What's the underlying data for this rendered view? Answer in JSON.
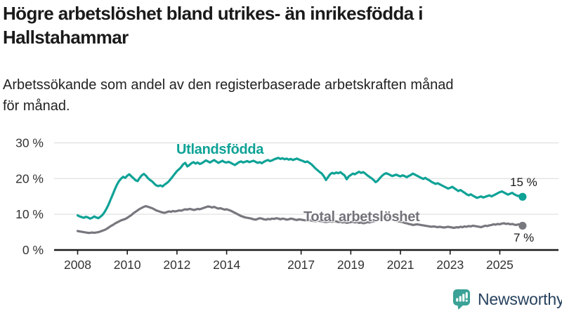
{
  "header": {
    "title_line1": "Högre arbetslöshet bland utrikes- än inrikesfödda i",
    "title_line2": "Hallstahammar",
    "subtitle_line1": "Arbetssökande som andel av den registerbaserade arbetskraften månad",
    "subtitle_line2": "för månad."
  },
  "branding": {
    "name": "Newsworthy"
  },
  "colors": {
    "series_foreign_born": "#0ea296",
    "series_total": "#77777e",
    "grid": "#d9d9d9",
    "axis": "#1a1a1a",
    "tick_text": "#333333",
    "logo_icon": "#3aa296",
    "logo_text": "#27425e"
  },
  "chart_data": {
    "type": "line",
    "title": "Högre arbetslöshet bland utrikes- än inrikesfödda i Hallstahammar",
    "subtitle": "Arbetssökande som andel av den registerbaserade arbetskraften månad för månad.",
    "xlabel": "",
    "ylabel": "",
    "x_unit": "month",
    "x_start_year": 2008,
    "x_end_year": 2025,
    "ylim": [
      0,
      30
    ],
    "grid": "horizontal",
    "legend_position": "inline-labels",
    "ytick_values": [
      0,
      10,
      20,
      30
    ],
    "ytick_labels": [
      "0 %",
      "10 %",
      "20 %",
      "30 %"
    ],
    "xtick_years": [
      2008,
      2010,
      2012,
      2014,
      2017,
      2019,
      2021,
      2023,
      2025
    ],
    "xtick_labels": [
      "2008",
      "2010",
      "2012",
      "2014",
      "2017",
      "2019",
      "2021",
      "2023",
      "2025"
    ],
    "series": [
      {
        "name": "Utlandsfödda",
        "color": "#0ea296",
        "end_label": "15 %",
        "end_value": 15,
        "values": [
          9.7,
          9.4,
          9.2,
          9.0,
          9.3,
          9.1,
          8.8,
          9.0,
          9.4,
          9.1,
          8.9,
          9.3,
          9.8,
          10.6,
          11.6,
          12.8,
          14.2,
          15.6,
          17.0,
          18.3,
          19.3,
          20.0,
          20.5,
          20.2,
          20.8,
          21.2,
          20.6,
          20.1,
          19.5,
          19.3,
          20.2,
          20.9,
          21.3,
          20.8,
          20.1,
          19.6,
          19.2,
          18.6,
          18.1,
          17.9,
          18.1,
          17.8,
          18.3,
          18.7,
          19.2,
          19.9,
          20.6,
          21.4,
          22.1,
          22.6,
          23.2,
          24.0,
          24.4,
          23.4,
          23.8,
          24.3,
          24.6,
          24.2,
          24.5,
          24.1,
          24.3,
          24.7,
          25.1,
          24.8,
          24.5,
          24.9,
          25.2,
          24.8,
          24.4,
          24.7,
          25.0,
          24.6,
          24.5,
          24.7,
          24.4,
          24.1,
          23.8,
          24.2,
          24.6,
          24.8,
          24.5,
          24.7,
          24.9,
          24.6,
          24.8,
          25.0,
          24.7,
          24.4,
          24.6,
          24.3,
          24.7,
          25.0,
          25.2,
          24.9,
          25.1,
          25.4,
          25.6,
          25.8,
          25.5,
          25.7,
          25.4,
          25.6,
          25.3,
          25.5,
          25.2,
          25.4,
          25.6,
          25.3,
          25.1,
          24.9,
          24.6,
          24.8,
          24.4,
          24.0,
          23.4,
          22.8,
          22.3,
          21.8,
          21.4,
          20.6,
          19.6,
          20.4,
          21.2,
          21.6,
          21.4,
          21.7,
          21.5,
          21.8,
          21.3,
          20.9,
          19.8,
          20.6,
          21.0,
          21.4,
          21.2,
          21.6,
          21.9,
          21.6,
          21.8,
          21.4,
          20.9,
          20.5,
          20.1,
          19.6,
          19.0,
          19.4,
          20.1,
          20.7,
          21.2,
          21.5,
          21.3,
          21.0,
          20.7,
          20.9,
          21.1,
          20.8,
          20.6,
          20.9,
          20.7,
          20.4,
          20.7,
          21.0,
          21.4,
          21.1,
          20.8,
          20.5,
          20.2,
          19.9,
          20.2,
          19.8,
          19.5,
          19.1,
          18.8,
          18.5,
          18.7,
          18.4,
          18.1,
          17.8,
          17.5,
          17.2,
          17.4,
          17.7,
          17.3,
          16.9,
          16.5,
          16.8,
          16.4,
          16.0,
          15.6,
          15.3,
          15.6,
          15.2,
          14.9,
          14.6,
          14.8,
          15.0,
          14.7,
          14.9,
          15.1,
          15.3,
          15.0,
          15.3,
          15.6,
          15.9,
          16.2,
          16.4,
          16.1,
          15.8,
          15.5,
          15.8,
          16.0,
          15.6,
          15.3,
          15.1,
          15.3,
          14.9
        ]
      },
      {
        "name": "Total arbetslöshet",
        "color": "#77777e",
        "end_label": "7 %",
        "end_value": 7,
        "values": [
          5.3,
          5.2,
          5.1,
          5.0,
          4.9,
          4.8,
          4.8,
          4.9,
          4.8,
          4.9,
          5.0,
          5.2,
          5.4,
          5.6,
          5.9,
          6.3,
          6.7,
          7.0,
          7.4,
          7.7,
          8.0,
          8.3,
          8.5,
          8.7,
          9.0,
          9.4,
          9.8,
          10.3,
          10.7,
          11.1,
          11.5,
          11.8,
          12.1,
          12.3,
          12.1,
          11.9,
          11.7,
          11.4,
          11.1,
          10.9,
          10.7,
          10.5,
          10.4,
          10.6,
          10.8,
          10.7,
          10.9,
          10.8,
          10.9,
          11.1,
          11.0,
          11.2,
          11.4,
          11.3,
          11.5,
          11.4,
          11.2,
          11.3,
          11.5,
          11.4,
          11.6,
          11.8,
          12.0,
          12.2,
          12.1,
          11.9,
          12.1,
          11.8,
          11.6,
          11.7,
          11.5,
          11.3,
          11.4,
          11.2,
          11.0,
          10.7,
          10.4,
          10.1,
          9.8,
          9.5,
          9.3,
          9.1,
          9.0,
          8.9,
          8.8,
          8.6,
          8.5,
          8.7,
          8.9,
          8.8,
          8.6,
          8.5,
          8.7,
          8.6,
          8.8,
          8.7,
          8.9,
          8.8,
          8.6,
          8.8,
          8.7,
          8.5,
          8.6,
          8.8,
          8.7,
          8.5,
          8.4,
          8.6,
          8.5,
          8.4,
          8.3,
          8.5,
          8.4,
          8.2,
          8.1,
          8.0,
          8.2,
          8.1,
          8.0,
          7.9,
          7.8,
          7.9,
          8.0,
          7.9,
          8.1,
          8.0,
          7.8,
          7.9,
          7.7,
          7.8,
          7.6,
          7.7,
          7.8,
          7.9,
          7.7,
          7.8,
          7.6,
          7.7,
          7.5,
          7.6,
          7.8,
          7.7,
          7.9,
          8.0,
          8.2,
          8.4,
          8.7,
          9.0,
          9.2,
          9.1,
          9.0,
          8.8,
          8.6,
          8.4,
          8.2,
          8.0,
          7.9,
          7.8,
          7.6,
          7.5,
          7.3,
          7.2,
          7.0,
          7.1,
          7.2,
          7.1,
          7.0,
          6.9,
          6.8,
          6.7,
          6.6,
          6.5,
          6.6,
          6.5,
          6.4,
          6.5,
          6.4,
          6.3,
          6.4,
          6.5,
          6.4,
          6.3,
          6.2,
          6.4,
          6.3,
          6.5,
          6.4,
          6.6,
          6.5,
          6.7,
          6.6,
          6.8,
          6.7,
          6.6,
          6.5,
          6.4,
          6.6,
          6.8,
          6.7,
          6.9,
          7.0,
          7.2,
          7.1,
          7.3,
          7.2,
          7.4,
          7.5,
          7.3,
          7.4,
          7.2,
          7.3,
          7.1,
          7.0,
          7.2,
          7.0,
          6.8
        ]
      }
    ]
  }
}
